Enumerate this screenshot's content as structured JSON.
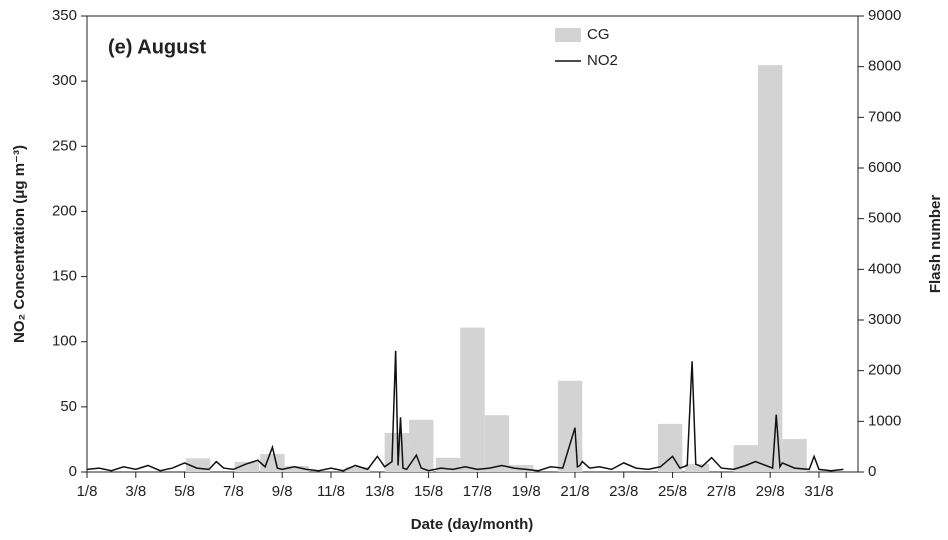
{
  "chart_data": {
    "type": "bar-line",
    "title": "(e) August",
    "x_label": "Date (day/month)",
    "y_label": "NO₂ Concentration (μg m⁻³)",
    "y2_label": "Flash number",
    "xlim": [
      1,
      32.6
    ],
    "xticks": [
      {
        "value": 1,
        "label": "1/8"
      },
      {
        "value": 3,
        "label": "3/8"
      },
      {
        "value": 5,
        "label": "5/8"
      },
      {
        "value": 7,
        "label": "7/8"
      },
      {
        "value": 9,
        "label": "9/8"
      },
      {
        "value": 11,
        "label": "11/8"
      },
      {
        "value": 13,
        "label": "13/8"
      },
      {
        "value": 15,
        "label": "15/8"
      },
      {
        "value": 17,
        "label": "17/8"
      },
      {
        "value": 19,
        "label": "19/8"
      },
      {
        "value": 21,
        "label": "21/8"
      },
      {
        "value": 23,
        "label": "23/8"
      },
      {
        "value": 25,
        "label": "25/8"
      },
      {
        "value": 27,
        "label": "27/8"
      },
      {
        "value": 29,
        "label": "29/8"
      },
      {
        "value": 31,
        "label": "31/8"
      }
    ],
    "ylim": [
      0,
      350
    ],
    "yticks": [
      0,
      50,
      100,
      150,
      200,
      250,
      300,
      350
    ],
    "y2lim": [
      0,
      9000
    ],
    "y2ticks": [
      0,
      1000,
      2000,
      3000,
      4000,
      5000,
      6000,
      7000,
      8000,
      9000
    ],
    "legend": "top-center",
    "series": [
      {
        "name": "CG",
        "type": "bar",
        "axis": "y2",
        "color": "#d3d3d3",
        "x": [
          5.55,
          7.55,
          8.6,
          9.6,
          12.1,
          13.7,
          14.7,
          15.8,
          16.8,
          17.8,
          18.8,
          20.8,
          24.9,
          26.0,
          28.0,
          29.0,
          30.0
        ],
        "values": [
          270,
          200,
          355,
          120,
          100,
          770,
          1030,
          280,
          2850,
          1120,
          140,
          1800,
          950,
          160,
          530,
          8030,
          650
        ]
      },
      {
        "name": "NO2",
        "type": "line",
        "color": "#111111",
        "x": [
          1,
          1.5,
          2,
          2.5,
          3,
          3.5,
          4,
          4.5,
          5,
          5.5,
          6,
          6.3,
          6.6,
          7,
          7.5,
          8,
          8.3,
          8.6,
          8.8,
          9,
          9.5,
          10,
          10.5,
          11,
          11.5,
          12,
          12.5,
          12.9,
          13.2,
          13.5,
          13.65,
          13.75,
          13.85,
          13.95,
          14.1,
          14.5,
          14.7,
          15,
          15.5,
          16,
          16.5,
          17,
          17.5,
          18,
          18.5,
          19,
          19.5,
          20,
          20.5,
          21.0,
          21.1,
          21.2,
          21.3,
          21.6,
          22,
          22.5,
          23,
          23.5,
          24,
          24.5,
          25,
          25.3,
          25.6,
          25.8,
          25.95,
          26.2,
          26.6,
          27,
          27.5,
          28,
          28.4,
          29.1,
          29.25,
          29.4,
          29.5,
          30,
          30.6,
          30.8,
          31,
          31.5,
          32
        ],
        "values": [
          2,
          3,
          1,
          4,
          2,
          5,
          1,
          3,
          7,
          3,
          2,
          8,
          3,
          2,
          6,
          9,
          4,
          19,
          3,
          2,
          4,
          2,
          1,
          3,
          1,
          5,
          2,
          12,
          4,
          8,
          93,
          5,
          42,
          3,
          2,
          13,
          3,
          1,
          3,
          2,
          4,
          2,
          3,
          5,
          3,
          2,
          1,
          4,
          3,
          34,
          4,
          5,
          8,
          3,
          4,
          2,
          7,
          3,
          2,
          4,
          12,
          3,
          5,
          85,
          6,
          4,
          11,
          3,
          2,
          5,
          8,
          3,
          44,
          4,
          7,
          3,
          2,
          12,
          2,
          1,
          2
        ]
      }
    ]
  }
}
